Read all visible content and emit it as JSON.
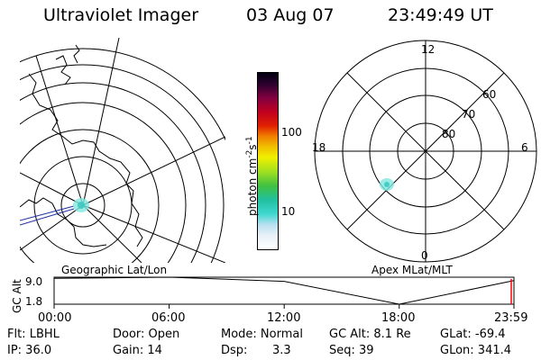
{
  "header": {
    "title": "Ultraviolet Imager",
    "date": "03 Aug 07",
    "time": "23:49:49 UT"
  },
  "geo_panel": {
    "label": "Geographic Lat/Lon"
  },
  "apex_panel": {
    "label": "Apex MLat/MLT",
    "mlt_labels": [
      "12",
      "6",
      "0",
      "18"
    ],
    "lat_labels": [
      "60",
      "70",
      "80"
    ]
  },
  "colorbar": {
    "unit": "photon cm",
    "unit_sup1": "-2",
    "unit_mid": "s",
    "unit_sup2": "-1",
    "ticks": [
      "100",
      "10"
    ],
    "scale": "log",
    "colors": [
      "#ffffff",
      "#e8f0f8",
      "#b8e0f0",
      "#40d8d0",
      "#20c0a0",
      "#40c040",
      "#a0e020",
      "#f0f000",
      "#f0c000",
      "#f08000",
      "#e02000",
      "#c00020",
      "#800040",
      "#300030",
      "#000010"
    ]
  },
  "gc_plot": {
    "ylabel": "GC Alt",
    "y_ticks": [
      "9.0",
      "1.8"
    ],
    "x_ticks": [
      "00:00",
      "06:00",
      "12:00",
      "18:00",
      "23:59"
    ],
    "marker_color": "#ff0000"
  },
  "status": {
    "row1": {
      "filter": "Flt: LBHL",
      "door": "Door: Open",
      "mode": "Mode: Normal",
      "gcalt": "GC Alt: 8.1 Re",
      "glat": "GLat: -69.4"
    },
    "row2": {
      "ip": "IP: 36.0",
      "gain": "Gain: 14",
      "dsp_label": "Dsp:",
      "dsp_value": "3.3",
      "seq": "Seq: 39",
      "glon": "GLon: 341.4"
    }
  },
  "chart_data": {
    "type": "line",
    "x": [
      "00:00",
      "06:00",
      "12:00",
      "18:00",
      "23:59"
    ],
    "series": [
      {
        "values": [
          8.7,
          9.0,
          7.9,
          1.8,
          8.1
        ]
      }
    ],
    "ylim": [
      1.8,
      9.0
    ]
  }
}
